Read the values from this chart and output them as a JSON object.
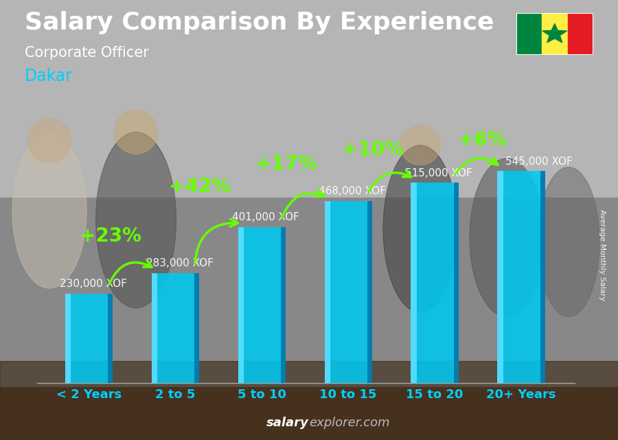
{
  "title": "Salary Comparison By Experience",
  "subtitle": "Corporate Officer",
  "city": "Dakar",
  "ylabel": "Average Monthly Salary",
  "footer_bold": "salary",
  "footer_regular": "explorer.com",
  "categories": [
    "< 2 Years",
    "2 to 5",
    "5 to 10",
    "10 to 15",
    "15 to 20",
    "20+ Years"
  ],
  "values": [
    230000,
    283000,
    401000,
    468000,
    515000,
    545000
  ],
  "labels": [
    "230,000 XOF",
    "283,000 XOF",
    "401,000 XOF",
    "468,000 XOF",
    "515,000 XOF",
    "545,000 XOF"
  ],
  "pct_labels": [
    "+23%",
    "+42%",
    "+17%",
    "+10%",
    "+6%"
  ],
  "bar_color_main": "#00c8f0",
  "bar_color_left": "#55deff",
  "bar_color_right": "#0077aa",
  "bar_color_top": "#88eeff",
  "bg_color": "#8a8a8a",
  "title_color": "#ffffff",
  "subtitle_color": "#ffffff",
  "city_color": "#00cfff",
  "label_color": "#ffffff",
  "pct_color": "#66ff00",
  "arrow_color": "#66ff00",
  "cat_color": "#00cfff",
  "footer_color": "#cccccc",
  "ylim": [
    0,
    680000
  ],
  "title_fontsize": 26,
  "subtitle_fontsize": 15,
  "city_fontsize": 17,
  "label_fontsize": 11,
  "pct_fontsize": 20,
  "cat_fontsize": 13,
  "bar_width": 0.55
}
